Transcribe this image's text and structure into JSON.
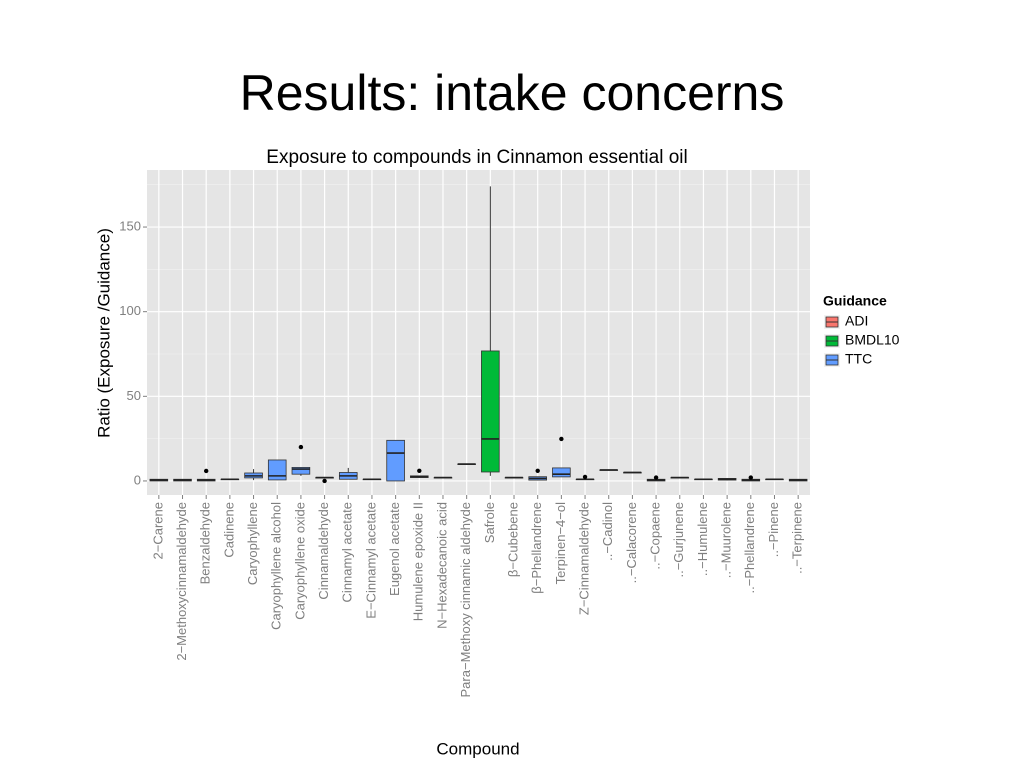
{
  "slide_title": "Results: intake concerns",
  "chart_data": {
    "type": "box",
    "title": "Exposure to compounds in Cinnamon essential oil",
    "x_label": "Compound",
    "y_label": "Ratio (Exposure /Guidance)",
    "categories": [
      "2−Carene",
      "2−Methoxycinnamaldehyde",
      "Benzaldehyde",
      "Cadinene",
      "Caryophyllene",
      "Caryophyllene alcohol",
      "Caryophyllene oxide",
      "Cinnamaldehyde",
      "Cinnamyl acetate",
      "E−Cinnamyl acetate",
      "Eugenol acetate",
      "Humulene epoxide II",
      "N−Hexadecanoic acid",
      "Para−Methoxy cinnamic aldehyde",
      "Safrole",
      "β−Cubebene",
      "β−Phellandrene",
      "Terpinen−4−ol",
      "Z−Cinnamaldehyde",
      "..−Cadinol",
      "..−Calacorene",
      "..−Copaene",
      "..−Gurjunene",
      "..−Humulene",
      "..−Muurolene",
      "..−Phellandrene",
      "..−Pinene",
      "..−Terpinene"
    ],
    "ylim": [
      -8.3,
      183.7
    ],
    "yticks": [
      0,
      50,
      100,
      150
    ],
    "y_minor_grid": [
      25,
      75,
      125,
      175
    ],
    "grid": true,
    "legend": {
      "title": "Guidance",
      "position": "right"
    },
    "series": [
      {
        "name": "ADI",
        "color": "#F8766D",
        "values": [
          null,
          null,
          null,
          null,
          null,
          null,
          null,
          null,
          null,
          null,
          null,
          null,
          null,
          null,
          null,
          null,
          null,
          null,
          null,
          null,
          null,
          null,
          null,
          null,
          null,
          null,
          null,
          null
        ]
      },
      {
        "name": "BMDL10",
        "color": "#00BA38",
        "values": [
          null,
          null,
          null,
          null,
          null,
          null,
          null,
          null,
          null,
          null,
          null,
          null,
          null,
          null,
          {
            "min": 3,
            "q1": 5.3,
            "median": 24.8,
            "q3": 76.8,
            "max": 174
          },
          null,
          null,
          null,
          null,
          null,
          null,
          null,
          null,
          null,
          null,
          null,
          null,
          null
        ]
      },
      {
        "name": "TTC",
        "color": "#619CFF",
        "values": [
          {
            "min": 0,
            "q1": 0,
            "median": 0.5,
            "q3": 1,
            "max": 1
          },
          {
            "min": 0,
            "q1": 0,
            "median": 0.5,
            "q3": 1,
            "max": 1
          },
          {
            "min": 0,
            "q1": 0,
            "median": 0.5,
            "q3": 1,
            "max": 1,
            "outliers": [
              5.9
            ]
          },
          {
            "min": 1,
            "q1": 1,
            "median": 1,
            "q3": 1,
            "max": 1
          },
          {
            "min": 0.5,
            "q1": 1.8,
            "median": 3,
            "q3": 4.7,
            "max": 7
          },
          {
            "min": 0.6,
            "q1": 0.6,
            "median": 3,
            "q3": 12.4,
            "max": 12.4
          },
          {
            "min": 3,
            "q1": 4,
            "median": 7,
            "q3": 8,
            "max": 8,
            "outliers": [
              20
            ]
          },
          {
            "min": 2,
            "q1": 2,
            "median": 2,
            "q3": 2,
            "max": 2,
            "outliers": [
              0
            ]
          },
          {
            "min": 1,
            "q1": 1,
            "median": 3,
            "q3": 5,
            "max": 7.7
          },
          {
            "min": 1,
            "q1": 1,
            "median": 1,
            "q3": 1,
            "max": 1
          },
          {
            "min": 0,
            "q1": 0,
            "median": 16.5,
            "q3": 24,
            "max": 24
          },
          {
            "min": 2,
            "q1": 2,
            "median": 2.5,
            "q3": 3,
            "max": 3,
            "outliers": [
              6
            ]
          },
          {
            "min": 2,
            "q1": 2,
            "median": 2,
            "q3": 2,
            "max": 2
          },
          {
            "min": 10,
            "q1": 10,
            "median": 10,
            "q3": 10,
            "max": 10
          },
          null,
          {
            "min": 2,
            "q1": 2,
            "median": 2,
            "q3": 2,
            "max": 2
          },
          {
            "min": 0.5,
            "q1": 0.5,
            "median": 1.5,
            "q3": 2.5,
            "max": 2.5,
            "outliers": [
              6
            ]
          },
          {
            "min": 2.4,
            "q1": 2.4,
            "median": 4,
            "q3": 7.7,
            "max": 7.7,
            "outliers": [
              24.8
            ]
          },
          {
            "min": 1,
            "q1": 1,
            "median": 1,
            "q3": 1,
            "max": 1,
            "outliers": [
              2.4
            ]
          },
          {
            "min": 6.5,
            "q1": 6.5,
            "median": 6.5,
            "q3": 6.5,
            "max": 6.5
          },
          {
            "min": 5,
            "q1": 5,
            "median": 5,
            "q3": 5,
            "max": 5
          },
          {
            "min": 0,
            "q1": 0,
            "median": 0.5,
            "q3": 1,
            "max": 1,
            "outliers": [
              2
            ]
          },
          {
            "min": 2,
            "q1": 2,
            "median": 2,
            "q3": 2,
            "max": 2
          },
          {
            "min": 1,
            "q1": 1,
            "median": 1,
            "q3": 1,
            "max": 1
          },
          {
            "min": 0.5,
            "q1": 0.5,
            "median": 1,
            "q3": 1.5,
            "max": 1.5
          },
          {
            "min": 0,
            "q1": 0,
            "median": 0.5,
            "q3": 1,
            "max": 1,
            "outliers": [
              2
            ]
          },
          {
            "min": 1,
            "q1": 1,
            "median": 1,
            "q3": 1,
            "max": 1
          },
          {
            "min": 0,
            "q1": 0,
            "median": 0.5,
            "q3": 1,
            "max": 1
          }
        ]
      }
    ]
  }
}
